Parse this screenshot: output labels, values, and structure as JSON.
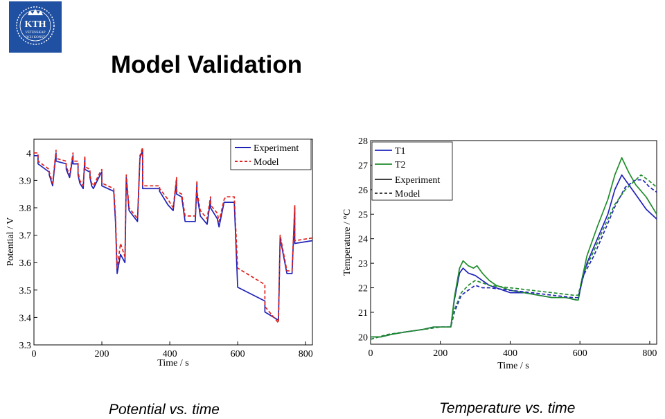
{
  "logo": {
    "name": "KTH",
    "line1": "VETENSKAP",
    "line2": "OCH KONST"
  },
  "slide": {
    "title": "Model Validation",
    "caption_left": "Potential vs. time",
    "caption_right": "Temperature vs. time"
  },
  "colors": {
    "experiment_blue": "#1f22b8",
    "model_red": "#e0201b",
    "t2_green": "#1e8c2a",
    "logo_blue": "#1f50a2"
  },
  "chart_data": [
    {
      "type": "line",
      "xlabel": "Time / s",
      "ylabel": "Potential / V",
      "xlim": [
        0,
        820
      ],
      "ylim": [
        3.3,
        4.05
      ],
      "xticks": [
        0,
        200,
        400,
        600,
        800
      ],
      "yticks": [
        3.3,
        3.4,
        3.5,
        3.6,
        3.7,
        3.8,
        3.9,
        4
      ],
      "legend_position": "top-right",
      "grid": false,
      "series": [
        {
          "name": "Experiment",
          "style": "solid",
          "color": "#1f22b8",
          "x": [
            0,
            12,
            12,
            45,
            45,
            55,
            55,
            65,
            65,
            95,
            95,
            105,
            105,
            115,
            115,
            130,
            130,
            135,
            135,
            145,
            145,
            150,
            150,
            165,
            165,
            170,
            170,
            175,
            175,
            195,
            195,
            200,
            200,
            235,
            235,
            240,
            240,
            245,
            245,
            255,
            255,
            268,
            268,
            272,
            272,
            280,
            280,
            305,
            305,
            312,
            312,
            320,
            320,
            370,
            370,
            395,
            395,
            410,
            410,
            420,
            420,
            435,
            435,
            445,
            445,
            475,
            475,
            480,
            480,
            490,
            490,
            510,
            510,
            520,
            520,
            540,
            540,
            545,
            545,
            560,
            560,
            565,
            565,
            590,
            590,
            600,
            600,
            680,
            680,
            720,
            720,
            725,
            725,
            745,
            745,
            760,
            760,
            768,
            768,
            820
          ],
          "y": [
            3.99,
            3.99,
            3.96,
            3.93,
            3.92,
            3.88,
            3.88,
            4.0,
            3.97,
            3.96,
            3.94,
            3.91,
            3.91,
            3.99,
            3.96,
            3.96,
            3.92,
            3.89,
            3.89,
            3.87,
            3.87,
            3.98,
            3.94,
            3.93,
            3.91,
            3.88,
            3.88,
            3.87,
            3.87,
            3.92,
            3.92,
            3.93,
            3.88,
            3.86,
            3.86,
            3.75,
            3.75,
            3.56,
            3.56,
            3.63,
            3.63,
            3.6,
            3.6,
            3.91,
            3.91,
            3.79,
            3.79,
            3.75,
            3.75,
            3.98,
            3.98,
            4.01,
            3.87,
            3.87,
            3.86,
            3.81,
            3.81,
            3.79,
            3.79,
            3.9,
            3.85,
            3.84,
            3.84,
            3.75,
            3.75,
            3.75,
            3.75,
            3.89,
            3.85,
            3.77,
            3.77,
            3.74,
            3.74,
            3.83,
            3.8,
            3.76,
            3.76,
            3.73,
            3.73,
            3.82,
            3.82,
            3.82,
            3.82,
            3.82,
            3.82,
            3.51,
            3.51,
            3.46,
            3.42,
            3.39,
            3.39,
            3.69,
            3.69,
            3.56,
            3.56,
            3.56,
            3.56,
            3.8,
            3.67,
            3.68
          ]
        },
        {
          "name": "Model",
          "style": "dashed",
          "color": "#e0201b",
          "x": [
            0,
            12,
            12,
            45,
            45,
            55,
            55,
            65,
            65,
            95,
            95,
            105,
            105,
            115,
            115,
            130,
            130,
            135,
            135,
            145,
            145,
            150,
            150,
            165,
            165,
            170,
            170,
            175,
            175,
            195,
            195,
            200,
            200,
            235,
            235,
            240,
            240,
            245,
            245,
            255,
            255,
            268,
            268,
            272,
            272,
            280,
            280,
            305,
            305,
            312,
            312,
            320,
            320,
            370,
            370,
            395,
            395,
            410,
            410,
            420,
            420,
            435,
            435,
            445,
            445,
            475,
            475,
            480,
            480,
            490,
            490,
            510,
            510,
            520,
            520,
            540,
            540,
            545,
            545,
            560,
            560,
            565,
            565,
            590,
            590,
            600,
            600,
            680,
            680,
            720,
            720,
            725,
            725,
            745,
            745,
            760,
            760,
            768,
            768,
            820
          ],
          "y": [
            4.0,
            4.0,
            3.97,
            3.94,
            3.93,
            3.89,
            3.89,
            4.01,
            3.98,
            3.97,
            3.95,
            3.92,
            3.92,
            4.0,
            3.97,
            3.97,
            3.93,
            3.9,
            3.9,
            3.88,
            3.88,
            3.99,
            3.95,
            3.94,
            3.92,
            3.89,
            3.89,
            3.88,
            3.88,
            3.93,
            3.93,
            3.94,
            3.89,
            3.87,
            3.87,
            3.77,
            3.77,
            3.58,
            3.58,
            3.67,
            3.67,
            3.62,
            3.62,
            3.92,
            3.92,
            3.8,
            3.8,
            3.76,
            3.76,
            3.99,
            3.99,
            4.02,
            3.88,
            3.88,
            3.87,
            3.83,
            3.83,
            3.8,
            3.8,
            3.91,
            3.86,
            3.85,
            3.85,
            3.77,
            3.77,
            3.77,
            3.77,
            3.9,
            3.86,
            3.79,
            3.79,
            3.76,
            3.76,
            3.84,
            3.81,
            3.78,
            3.78,
            3.75,
            3.75,
            3.83,
            3.83,
            3.84,
            3.84,
            3.84,
            3.84,
            3.58,
            3.58,
            3.52,
            3.44,
            3.38,
            3.38,
            3.7,
            3.7,
            3.57,
            3.57,
            3.57,
            3.57,
            3.81,
            3.68,
            3.69
          ]
        }
      ]
    },
    {
      "type": "line",
      "xlabel": "Time / s",
      "ylabel": "Temperature / °C",
      "xlim": [
        0,
        820
      ],
      "ylim": [
        19.7,
        28
      ],
      "xticks": [
        0,
        200,
        400,
        600,
        800
      ],
      "yticks": [
        20,
        21,
        22,
        23,
        24,
        25,
        26,
        27,
        28
      ],
      "legend_position": "top-left",
      "legend_entries": [
        "T1",
        "T2",
        "Experiment",
        "Model"
      ],
      "grid": false,
      "series": [
        {
          "name": "T1 Experiment",
          "style": "solid",
          "color": "#1f22b8",
          "x": [
            0,
            30,
            60,
            100,
            150,
            180,
            200,
            230,
            240,
            255,
            265,
            280,
            300,
            320,
            340,
            360,
            380,
            400,
            440,
            480,
            520,
            560,
            590,
            595,
            605,
            620,
            650,
            680,
            700,
            720,
            740,
            760,
            790,
            820
          ],
          "y": [
            20.0,
            20.0,
            20.1,
            20.2,
            20.3,
            20.4,
            20.4,
            20.4,
            21.5,
            22.6,
            22.8,
            22.6,
            22.5,
            22.3,
            22.1,
            22.0,
            21.9,
            21.8,
            21.8,
            21.7,
            21.6,
            21.6,
            21.5,
            21.5,
            22.2,
            23.0,
            24.0,
            25.0,
            26.0,
            26.6,
            26.2,
            25.8,
            25.2,
            24.8
          ]
        },
        {
          "name": "T2 Experiment",
          "style": "solid",
          "color": "#1e8c2a",
          "x": [
            0,
            30,
            60,
            100,
            150,
            180,
            200,
            230,
            240,
            255,
            265,
            280,
            295,
            305,
            320,
            340,
            360,
            380,
            400,
            440,
            480,
            520,
            560,
            590,
            595,
            605,
            620,
            650,
            680,
            700,
            720,
            740,
            760,
            790,
            820
          ],
          "y": [
            20.0,
            20.0,
            20.1,
            20.2,
            20.3,
            20.4,
            20.4,
            20.4,
            21.6,
            22.8,
            23.1,
            22.9,
            22.8,
            22.9,
            22.6,
            22.3,
            22.1,
            22.0,
            21.9,
            21.8,
            21.7,
            21.6,
            21.6,
            21.5,
            21.5,
            22.3,
            23.3,
            24.5,
            25.6,
            26.6,
            27.3,
            26.7,
            26.2,
            25.7,
            25.0
          ]
        },
        {
          "name": "T1 Model",
          "style": "dashed",
          "color": "#1f22b8",
          "x": [
            0,
            50,
            100,
            150,
            200,
            230,
            240,
            260,
            280,
            300,
            320,
            340,
            400,
            460,
            520,
            580,
            595,
            610,
            640,
            670,
            700,
            730,
            760,
            780,
            800,
            820
          ],
          "y": [
            19.9,
            20.1,
            20.2,
            20.3,
            20.4,
            20.4,
            21.0,
            21.7,
            21.9,
            22.1,
            22.0,
            22.0,
            21.9,
            21.8,
            21.7,
            21.6,
            21.6,
            22.5,
            23.3,
            24.3,
            25.3,
            26.1,
            26.4,
            26.4,
            26.1,
            25.9
          ]
        },
        {
          "name": "T2 Model",
          "style": "dashed",
          "color": "#1e8c2a",
          "x": [
            0,
            50,
            100,
            150,
            200,
            230,
            240,
            260,
            280,
            300,
            320,
            340,
            400,
            460,
            520,
            580,
            595,
            610,
            640,
            670,
            700,
            730,
            760,
            775,
            795,
            820
          ],
          "y": [
            19.9,
            20.1,
            20.2,
            20.3,
            20.4,
            20.4,
            21.1,
            21.8,
            22.1,
            22.3,
            22.2,
            22.1,
            22.0,
            21.9,
            21.8,
            21.7,
            21.7,
            22.6,
            23.5,
            24.5,
            25.4,
            26.0,
            26.4,
            26.6,
            26.4,
            26.1
          ]
        }
      ]
    }
  ]
}
